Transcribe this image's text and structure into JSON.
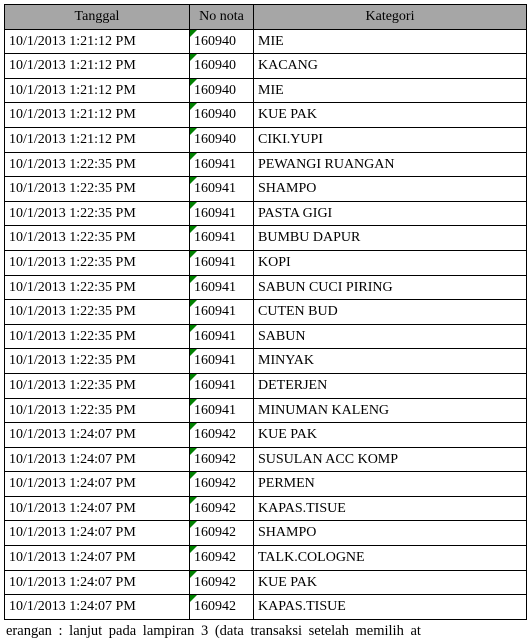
{
  "table": {
    "headers": {
      "date": "Tanggal",
      "nota": "No nota",
      "category": "Kategori"
    },
    "rows": [
      {
        "date": "10/1/2013 1:21:12 PM",
        "nota": "160940",
        "category": "MIE"
      },
      {
        "date": "10/1/2013 1:21:12 PM",
        "nota": "160940",
        "category": "KACANG"
      },
      {
        "date": "10/1/2013 1:21:12 PM",
        "nota": "160940",
        "category": "MIE"
      },
      {
        "date": "10/1/2013 1:21:12 PM",
        "nota": "160940",
        "category": "KUE PAK"
      },
      {
        "date": "10/1/2013 1:21:12 PM",
        "nota": "160940",
        "category": "CIKI.YUPI"
      },
      {
        "date": "10/1/2013 1:22:35 PM",
        "nota": "160941",
        "category": "PEWANGI RUANGAN"
      },
      {
        "date": "10/1/2013 1:22:35 PM",
        "nota": "160941",
        "category": "SHAMPO"
      },
      {
        "date": "10/1/2013 1:22:35 PM",
        "nota": "160941",
        "category": "PASTA GIGI"
      },
      {
        "date": "10/1/2013 1:22:35 PM",
        "nota": "160941",
        "category": "BUMBU DAPUR"
      },
      {
        "date": "10/1/2013 1:22:35 PM",
        "nota": "160941",
        "category": "KOPI"
      },
      {
        "date": "10/1/2013 1:22:35 PM",
        "nota": "160941",
        "category": "SABUN CUCI PIRING"
      },
      {
        "date": "10/1/2013 1:22:35 PM",
        "nota": "160941",
        "category": "CUTEN BUD"
      },
      {
        "date": "10/1/2013 1:22:35 PM",
        "nota": "160941",
        "category": "SABUN"
      },
      {
        "date": "10/1/2013 1:22:35 PM",
        "nota": "160941",
        "category": "MINYAK"
      },
      {
        "date": "10/1/2013 1:22:35 PM",
        "nota": "160941",
        "category": "DETERJEN"
      },
      {
        "date": "10/1/2013 1:22:35 PM",
        "nota": "160941",
        "category": "MINUMAN KALENG"
      },
      {
        "date": "10/1/2013 1:24:07 PM",
        "nota": "160942",
        "category": "KUE PAK"
      },
      {
        "date": "10/1/2013 1:24:07 PM",
        "nota": "160942",
        "category": "SUSULAN ACC KOMP"
      },
      {
        "date": "10/1/2013 1:24:07 PM",
        "nota": "160942",
        "category": "PERMEN"
      },
      {
        "date": "10/1/2013 1:24:07 PM",
        "nota": "160942",
        "category": "KAPAS.TISUE"
      },
      {
        "date": "10/1/2013 1:24:07 PM",
        "nota": "160942",
        "category": "SHAMPO"
      },
      {
        "date": "10/1/2013 1:24:07 PM",
        "nota": "160942",
        "category": "TALK.COLOGNE"
      },
      {
        "date": "10/1/2013 1:24:07 PM",
        "nota": "160942",
        "category": "KUE PAK"
      },
      {
        "date": "10/1/2013 1:24:07 PM",
        "nota": "160942",
        "category": "KAPAS.TISUE"
      }
    ]
  },
  "footer": "erangan : lanjut pada lampiran 3 (data transaksi setelah memilih at"
}
